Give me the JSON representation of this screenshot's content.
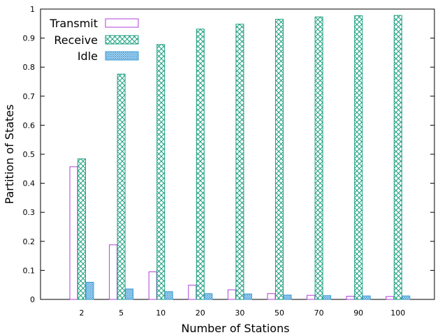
{
  "chart_data": {
    "type": "bar",
    "xlabel": "Number of Stations",
    "ylabel": "Partition of States",
    "ylim": [
      0,
      1
    ],
    "yticks": [
      "0",
      "0.1",
      "0.2",
      "0.3",
      "0.4",
      "0.5",
      "0.6",
      "0.7",
      "0.8",
      "0.9",
      "1"
    ],
    "categories": [
      "2",
      "5",
      "10",
      "20",
      "30",
      "50",
      "70",
      "90",
      "100"
    ],
    "grid": false,
    "legend_position": "top-left",
    "series": [
      {
        "name": "Transmit",
        "color": "#b23fd8",
        "pattern": "empty",
        "values": [
          0.457,
          0.188,
          0.095,
          0.049,
          0.033,
          0.02,
          0.014,
          0.011,
          0.01
        ]
      },
      {
        "name": "Receive",
        "color": "#1a9e7e",
        "pattern": "crosshatch",
        "values": [
          0.484,
          0.776,
          0.878,
          0.931,
          0.948,
          0.965,
          0.973,
          0.977,
          0.978
        ]
      },
      {
        "name": "Idle",
        "color": "#3d9ad6",
        "pattern": "dense-hatch",
        "values": [
          0.059,
          0.036,
          0.027,
          0.02,
          0.019,
          0.015,
          0.013,
          0.012,
          0.012
        ]
      }
    ]
  }
}
